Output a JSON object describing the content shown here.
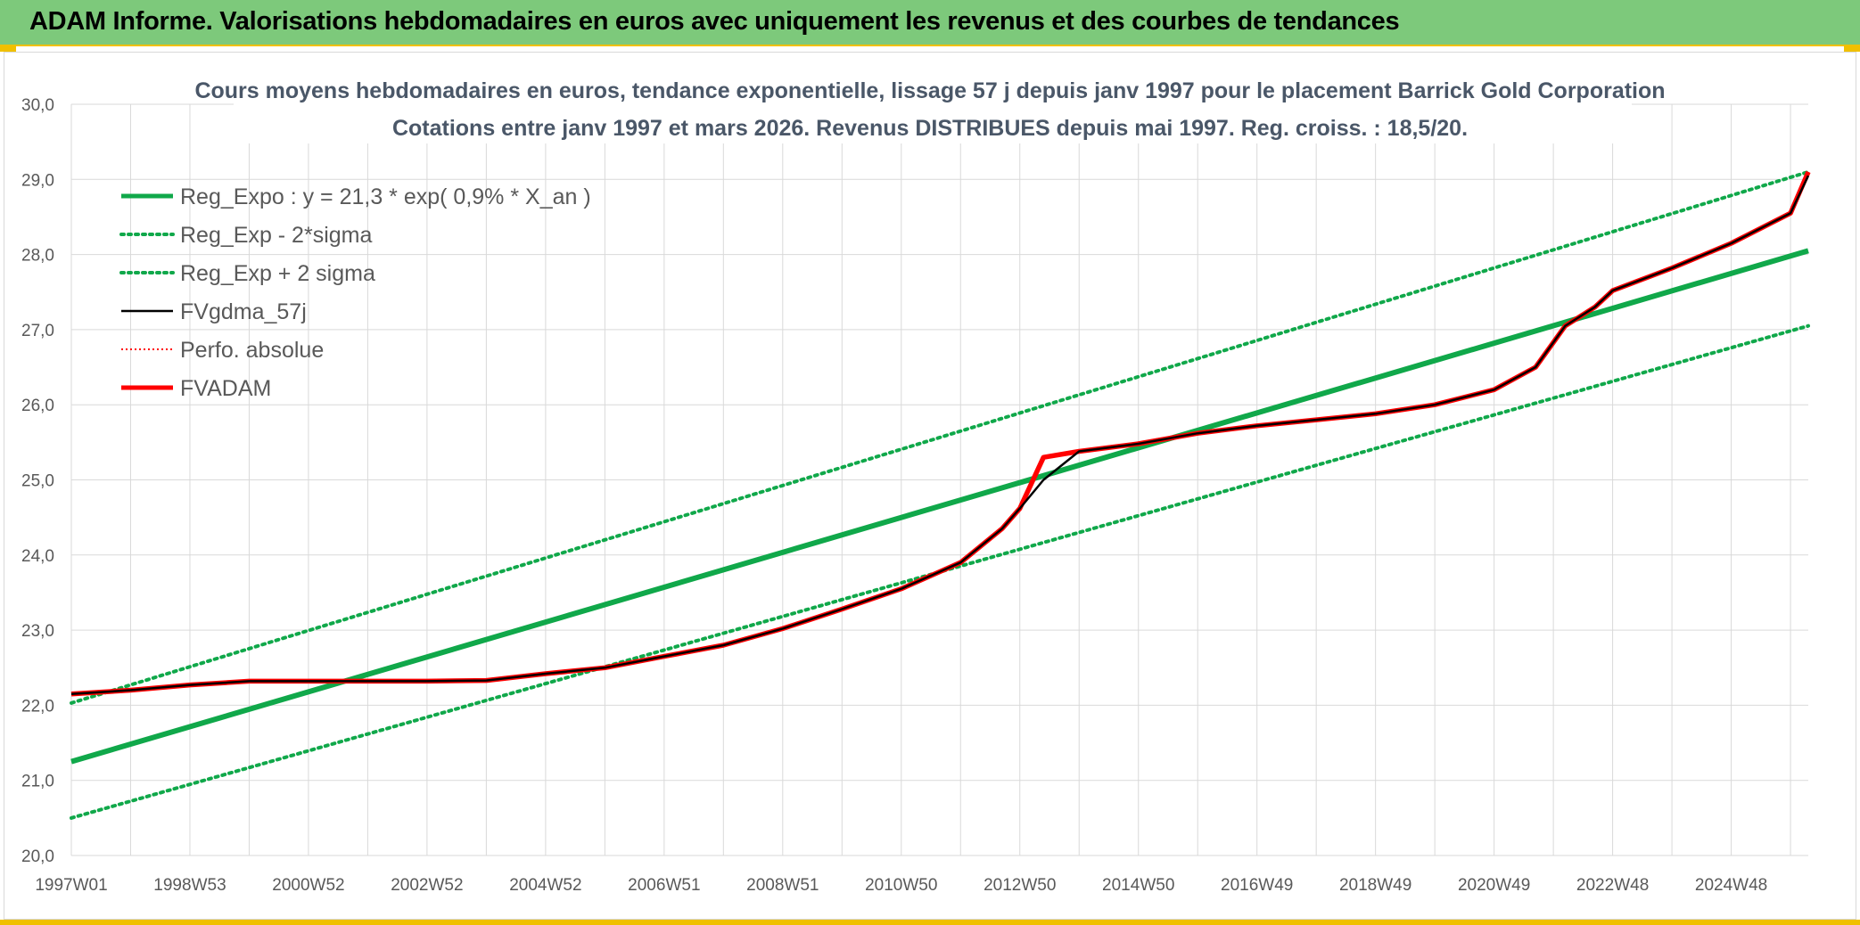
{
  "banner": {
    "title": "ADAM Informe. Valorisations hebdomadaires en euros avec uniquement les revenus et des courbes de tendances"
  },
  "colors": {
    "banner_bg": "#7dc97b",
    "reg_green": "#10a84a",
    "fv_red": "#ff0000",
    "gdma_black": "#000000",
    "grid": "#d9d9d9"
  },
  "chart_data": {
    "type": "line",
    "title": "Cours moyens hebdomadaires en euros, tendance exponentielle, lissage 57 j depuis janv 1997 pour le placement Barrick Gold Corporation",
    "subtitle": "Cotations entre janv 1997 et mars 2026. Revenus DISTRIBUES depuis mai 1997. Reg. croiss. : 18,5/20.",
    "xlabel": "",
    "ylabel": "",
    "ylim": [
      20,
      30
    ],
    "xlim": [
      1997.0,
      2026.3
    ],
    "y_ticks": [
      "20,0",
      "21,0",
      "22,0",
      "23,0",
      "24,0",
      "25,0",
      "26,0",
      "27,0",
      "28,0",
      "29,0",
      "30,0"
    ],
    "x_ticks": [
      {
        "label": "1997W01",
        "x": 1997.0
      },
      {
        "label": "1998W53",
        "x": 1999.0
      },
      {
        "label": "2000W52",
        "x": 2001.0
      },
      {
        "label": "2002W52",
        "x": 2003.0
      },
      {
        "label": "2004W52",
        "x": 2005.0
      },
      {
        "label": "2006W51",
        "x": 2007.0
      },
      {
        "label": "2008W51",
        "x": 2009.0
      },
      {
        "label": "2010W50",
        "x": 2011.0
      },
      {
        "label": "2012W50",
        "x": 2013.0
      },
      {
        "label": "2014W50",
        "x": 2015.0
      },
      {
        "label": "2016W49",
        "x": 2017.0
      },
      {
        "label": "2018W49",
        "x": 2019.0
      },
      {
        "label": "2020W49",
        "x": 2021.0
      },
      {
        "label": "2022W48",
        "x": 2023.0
      },
      {
        "label": "2024W48",
        "x": 2025.0
      }
    ],
    "grid": true,
    "legend_position": "top-left",
    "series": [
      {
        "name": "Reg_Expo : y = 21,3 * exp( 0,9% *  X_an )",
        "style": "solid-thick",
        "color": "#10a84a",
        "x": [
          1997.0,
          2026.3
        ],
        "y": [
          21.25,
          28.05
        ]
      },
      {
        "name": "Reg_Exp - 2*sigma",
        "style": "dotted",
        "color": "#10a84a",
        "x": [
          1997.0,
          2026.3
        ],
        "y": [
          20.5,
          27.05
        ]
      },
      {
        "name": "Reg_Exp + 2 sigma",
        "style": "dotted",
        "color": "#10a84a",
        "x": [
          1997.0,
          2026.3
        ],
        "y": [
          22.03,
          29.1
        ]
      },
      {
        "name": "FVgdma_57j",
        "style": "solid-thin",
        "color": "#000000",
        "x": [
          1997.0,
          1998.0,
          1999.0,
          2000.0,
          2001.0,
          2002.0,
          2003.0,
          2004.0,
          2005.0,
          2006.0,
          2007.0,
          2008.0,
          2009.0,
          2010.0,
          2011.0,
          2012.0,
          2012.7,
          2013.0,
          2013.4,
          2014.0,
          2015.0,
          2016.0,
          2017.0,
          2018.0,
          2019.0,
          2020.0,
          2021.0,
          2021.7,
          2022.2,
          2022.7,
          2023.0,
          2024.0,
          2025.0,
          2026.0,
          2026.3
        ],
        "y": [
          22.15,
          22.2,
          22.27,
          22.32,
          22.32,
          22.32,
          22.32,
          22.33,
          22.42,
          22.5,
          22.65,
          22.8,
          23.02,
          23.28,
          23.55,
          23.9,
          24.35,
          24.62,
          25.0,
          25.38,
          25.48,
          25.62,
          25.72,
          25.8,
          25.88,
          26.0,
          26.2,
          26.5,
          27.05,
          27.3,
          27.52,
          27.82,
          28.15,
          28.55,
          29.05
        ]
      },
      {
        "name": "Perfo. absolue",
        "style": "dotted-red",
        "color": "#ff0000",
        "x": [
          1997.0,
          1998.0,
          1999.0,
          2000.0,
          2001.0,
          2002.0,
          2003.0,
          2004.0,
          2005.0,
          2006.0,
          2007.0,
          2008.0,
          2009.0,
          2010.0,
          2011.0,
          2012.0,
          2012.7,
          2013.0,
          2013.4,
          2014.0,
          2015.0,
          2016.0,
          2017.0,
          2018.0,
          2019.0,
          2020.0,
          2021.0,
          2021.7,
          2022.2,
          2022.7,
          2023.0,
          2024.0,
          2025.0,
          2026.0,
          2026.3
        ],
        "y": [
          22.15,
          22.2,
          22.27,
          22.32,
          22.32,
          22.32,
          22.32,
          22.33,
          22.42,
          22.5,
          22.65,
          22.8,
          23.02,
          23.28,
          23.55,
          23.9,
          24.35,
          24.62,
          25.3,
          25.38,
          25.48,
          25.62,
          25.72,
          25.8,
          25.88,
          26.0,
          26.2,
          26.5,
          27.05,
          27.3,
          27.52,
          27.82,
          28.15,
          28.55,
          29.1
        ]
      },
      {
        "name": "FVADAM",
        "style": "solid-thick",
        "color": "#ff0000",
        "x": [
          1997.0,
          1998.0,
          1999.0,
          2000.0,
          2001.0,
          2002.0,
          2003.0,
          2004.0,
          2005.0,
          2006.0,
          2007.0,
          2008.0,
          2009.0,
          2010.0,
          2011.0,
          2012.0,
          2012.7,
          2013.0,
          2013.4,
          2014.0,
          2015.0,
          2016.0,
          2017.0,
          2018.0,
          2019.0,
          2020.0,
          2021.0,
          2021.7,
          2022.2,
          2022.7,
          2023.0,
          2024.0,
          2025.0,
          2026.0,
          2026.3
        ],
        "y": [
          22.15,
          22.2,
          22.27,
          22.32,
          22.32,
          22.32,
          22.32,
          22.33,
          22.42,
          22.5,
          22.65,
          22.8,
          23.02,
          23.28,
          23.55,
          23.9,
          24.35,
          24.62,
          25.3,
          25.38,
          25.48,
          25.62,
          25.72,
          25.8,
          25.88,
          26.0,
          26.2,
          26.5,
          27.05,
          27.3,
          27.52,
          27.82,
          28.15,
          28.55,
          29.1
        ]
      }
    ]
  }
}
